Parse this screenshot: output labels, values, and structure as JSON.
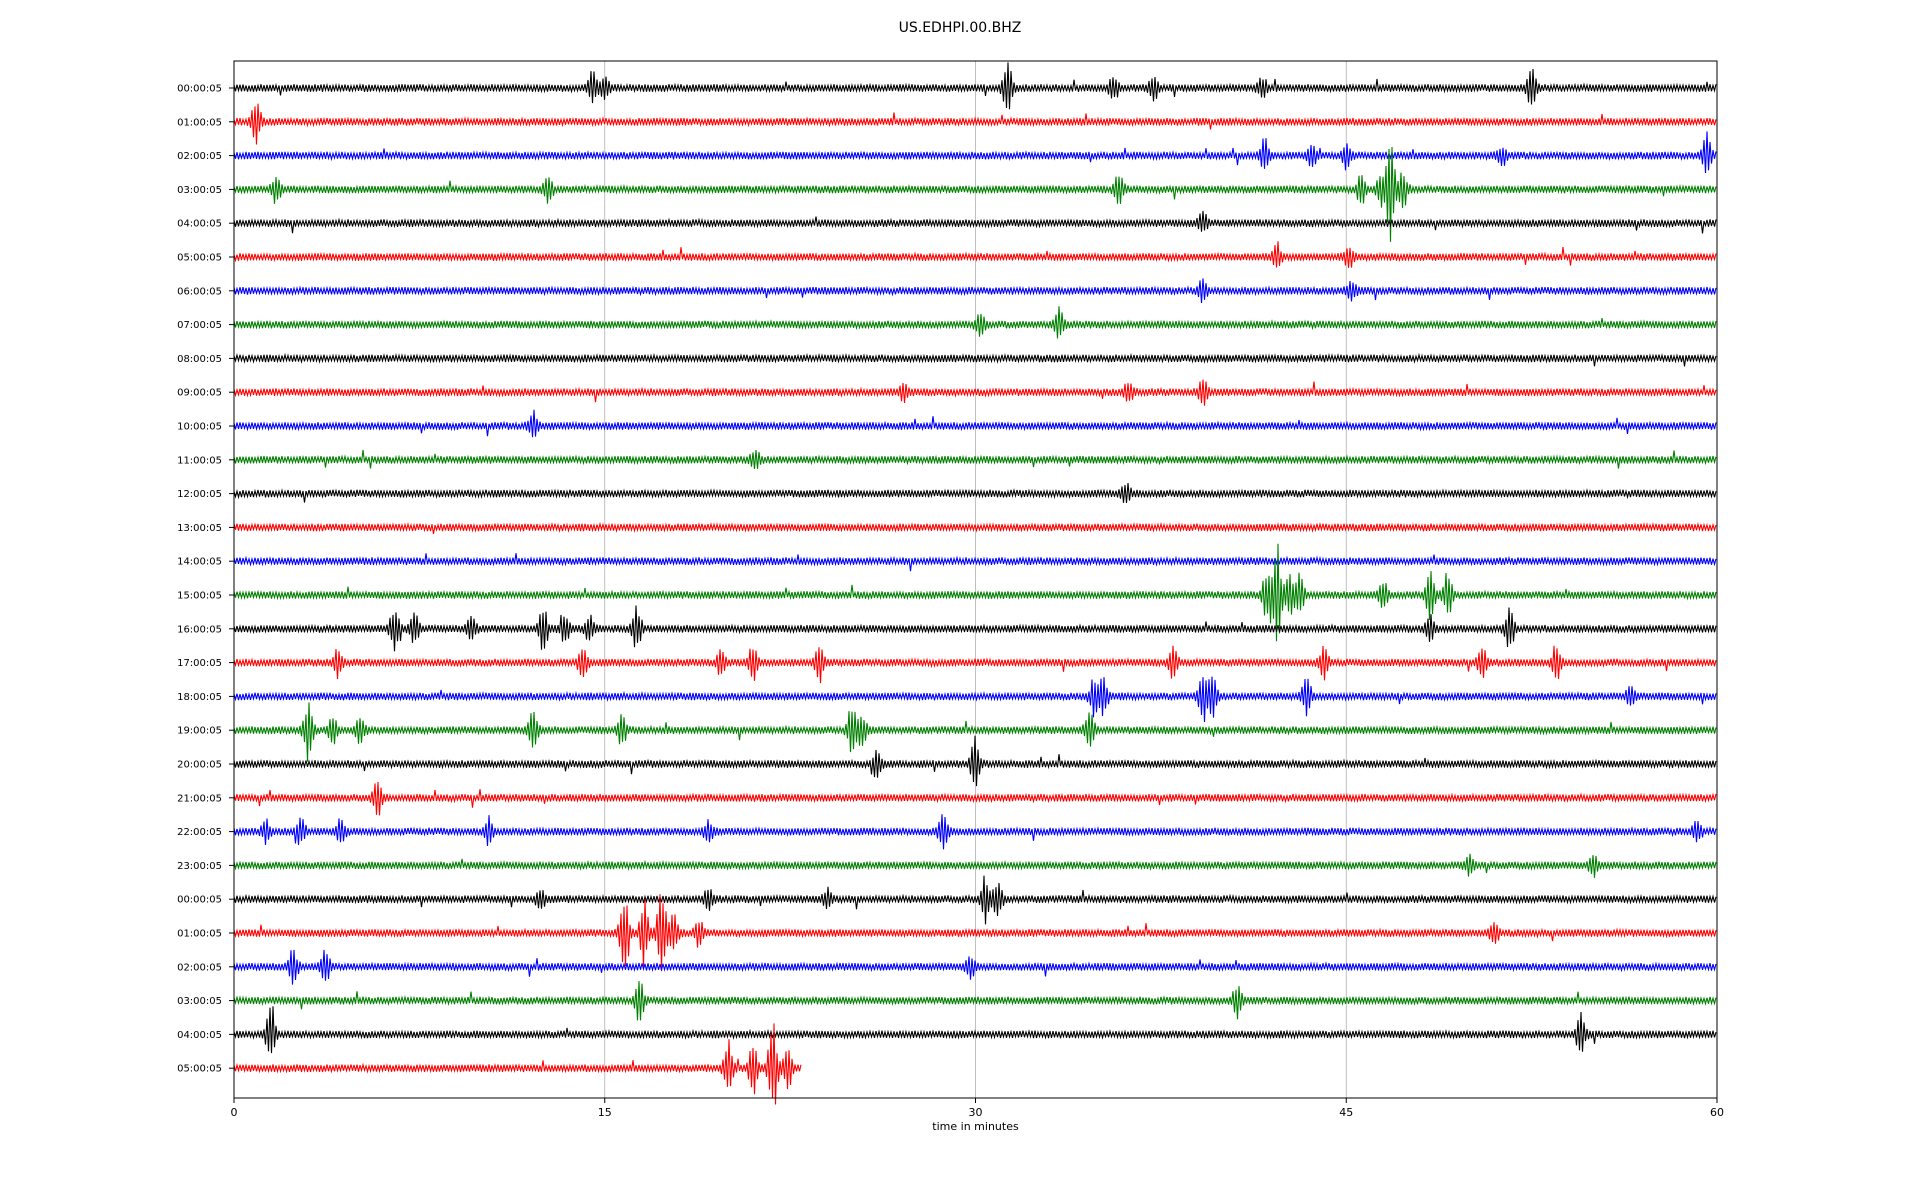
{
  "chart_data": {
    "type": "line",
    "title": "US.EDHPI.00.BHZ",
    "xlabel": "time in minutes",
    "ylabel": "",
    "xlim": [
      0,
      60
    ],
    "x_ticks": [
      "0",
      "15",
      "30",
      "45",
      "60"
    ],
    "x_tick_values": [
      0,
      15,
      30,
      45,
      60
    ],
    "grid": "vertical lines at x ticks",
    "color_cycle": [
      "#000000",
      "#ff0000",
      "#0000ff",
      "#008000"
    ],
    "rows": [
      {
        "label": "00:00:05",
        "events": [
          [
            14.5,
            0.6
          ],
          [
            15,
            0.4
          ],
          [
            31.3,
            1.0
          ],
          [
            35.6,
            0.5
          ],
          [
            37.2,
            0.5
          ],
          [
            41.6,
            0.4
          ],
          [
            52.5,
            0.8
          ]
        ],
        "end": 60
      },
      {
        "label": "01:00:05",
        "events": [
          [
            0.9,
            0.8
          ]
        ],
        "end": 60
      },
      {
        "label": "02:00:05",
        "events": [
          [
            41.7,
            0.6
          ],
          [
            43.6,
            0.4
          ],
          [
            45,
            0.5
          ],
          [
            51.3,
            0.4
          ],
          [
            59.6,
            0.8
          ]
        ],
        "end": 60
      },
      {
        "label": "03:00:05",
        "events": [
          [
            1.7,
            0.5
          ],
          [
            12.7,
            0.5
          ],
          [
            35.8,
            0.6
          ],
          [
            45.6,
            0.6
          ],
          [
            46.4,
            0.7
          ],
          [
            46.8,
            2.0
          ],
          [
            47.3,
            0.7
          ]
        ],
        "end": 60
      },
      {
        "label": "04:00:05",
        "events": [
          [
            39.2,
            0.4
          ]
        ],
        "end": 60
      },
      {
        "label": "05:00:05",
        "events": [
          [
            42.2,
            0.5
          ],
          [
            45.1,
            0.5
          ]
        ],
        "end": 60
      },
      {
        "label": "06:00:05",
        "events": [
          [
            39.2,
            0.4
          ],
          [
            45.2,
            0.4
          ]
        ],
        "end": 60
      },
      {
        "label": "07:00:05",
        "events": [
          [
            30.2,
            0.4
          ],
          [
            33.4,
            0.6
          ]
        ],
        "end": 60
      },
      {
        "label": "08:00:05",
        "events": [],
        "end": 60
      },
      {
        "label": "09:00:05",
        "events": [
          [
            27.1,
            0.4
          ],
          [
            36.2,
            0.4
          ],
          [
            39.2,
            0.5
          ]
        ],
        "end": 60
      },
      {
        "label": "10:00:05",
        "events": [
          [
            12.1,
            0.5
          ]
        ],
        "end": 60
      },
      {
        "label": "11:00:05",
        "events": [
          [
            21.1,
            0.4
          ]
        ],
        "end": 60
      },
      {
        "label": "12:00:05",
        "events": [
          [
            36.1,
            0.4
          ]
        ],
        "end": 60
      },
      {
        "label": "13:00:05",
        "events": [],
        "end": 60
      },
      {
        "label": "14:00:05",
        "events": [],
        "end": 60
      },
      {
        "label": "15:00:05",
        "events": [
          [
            41.8,
            1.0
          ],
          [
            42.2,
            2.0
          ],
          [
            42.7,
            0.8
          ],
          [
            43.1,
            0.8
          ],
          [
            46.5,
            0.5
          ],
          [
            48.4,
            0.9
          ],
          [
            49.1,
            0.9
          ]
        ],
        "end": 60
      },
      {
        "label": "16:00:05",
        "events": [
          [
            6.5,
            0.9
          ],
          [
            7.3,
            0.6
          ],
          [
            9.6,
            0.5
          ],
          [
            12.5,
            0.9
          ],
          [
            13.4,
            0.6
          ],
          [
            14.4,
            0.5
          ],
          [
            16.3,
            0.8
          ],
          [
            48.4,
            0.5
          ],
          [
            51.6,
            0.7
          ]
        ],
        "end": 60
      },
      {
        "label": "17:00:05",
        "events": [
          [
            4.2,
            0.5
          ],
          [
            14.1,
            0.7
          ],
          [
            19.7,
            0.5
          ],
          [
            21.0,
            0.7
          ],
          [
            23.7,
            0.7
          ],
          [
            38.0,
            0.6
          ],
          [
            44.1,
            0.6
          ],
          [
            50.5,
            0.7
          ],
          [
            53.5,
            0.7
          ]
        ],
        "end": 60
      },
      {
        "label": "18:00:05",
        "events": [
          [
            34.8,
            0.7
          ],
          [
            35.2,
            0.7
          ],
          [
            39.2,
            1.0
          ],
          [
            39.6,
            0.8
          ],
          [
            43.4,
            0.7
          ],
          [
            56.5,
            0.4
          ]
        ],
        "end": 60
      },
      {
        "label": "19:00:05",
        "events": [
          [
            3.0,
            1.2
          ],
          [
            4.0,
            0.6
          ],
          [
            5.1,
            0.5
          ],
          [
            12.1,
            0.7
          ],
          [
            15.7,
            0.6
          ],
          [
            25.0,
            0.9
          ],
          [
            25.4,
            0.6
          ],
          [
            34.6,
            0.8
          ]
        ],
        "end": 60
      },
      {
        "label": "20:00:05",
        "events": [
          [
            26.0,
            0.5
          ],
          [
            30.0,
            1.0
          ]
        ],
        "end": 60
      },
      {
        "label": "21:00:05",
        "events": [
          [
            5.8,
            0.7
          ]
        ],
        "end": 60
      },
      {
        "label": "22:00:05",
        "events": [
          [
            1.3,
            0.4
          ],
          [
            2.7,
            0.5
          ],
          [
            4.3,
            0.5
          ],
          [
            10.3,
            0.5
          ],
          [
            19.2,
            0.4
          ],
          [
            28.7,
            0.7
          ],
          [
            59.2,
            0.4
          ]
        ],
        "end": 60
      },
      {
        "label": "23:00:05",
        "events": [
          [
            50.0,
            0.4
          ],
          [
            55.0,
            0.4
          ]
        ],
        "end": 60
      },
      {
        "label": "00:00:05",
        "events": [
          [
            12.4,
            0.4
          ],
          [
            19.2,
            0.4
          ],
          [
            24.0,
            0.4
          ],
          [
            30.4,
            0.9
          ],
          [
            30.9,
            0.7
          ]
        ],
        "end": 60
      },
      {
        "label": "01:00:05",
        "events": [
          [
            15.8,
            1.8
          ],
          [
            16.6,
            1.3
          ],
          [
            17.3,
            1.8
          ],
          [
            17.8,
            0.7
          ],
          [
            18.8,
            0.5
          ],
          [
            51.0,
            0.4
          ]
        ],
        "end": 60
      },
      {
        "label": "02:00:05",
        "events": [
          [
            2.4,
            0.7
          ],
          [
            3.7,
            0.6
          ],
          [
            29.8,
            0.4
          ]
        ],
        "end": 60
      },
      {
        "label": "03:00:05",
        "events": [
          [
            16.4,
            0.8
          ],
          [
            40.6,
            0.6
          ]
        ],
        "end": 60
      },
      {
        "label": "04:00:05",
        "events": [
          [
            1.5,
            1.2
          ],
          [
            54.5,
            0.8
          ]
        ],
        "end": 60
      },
      {
        "label": "05:00:05",
        "events": [
          [
            20.0,
            1.0
          ],
          [
            21.0,
            1.0
          ],
          [
            21.8,
            2.0
          ],
          [
            22.4,
            0.8
          ]
        ],
        "end": 23.0
      }
    ]
  }
}
